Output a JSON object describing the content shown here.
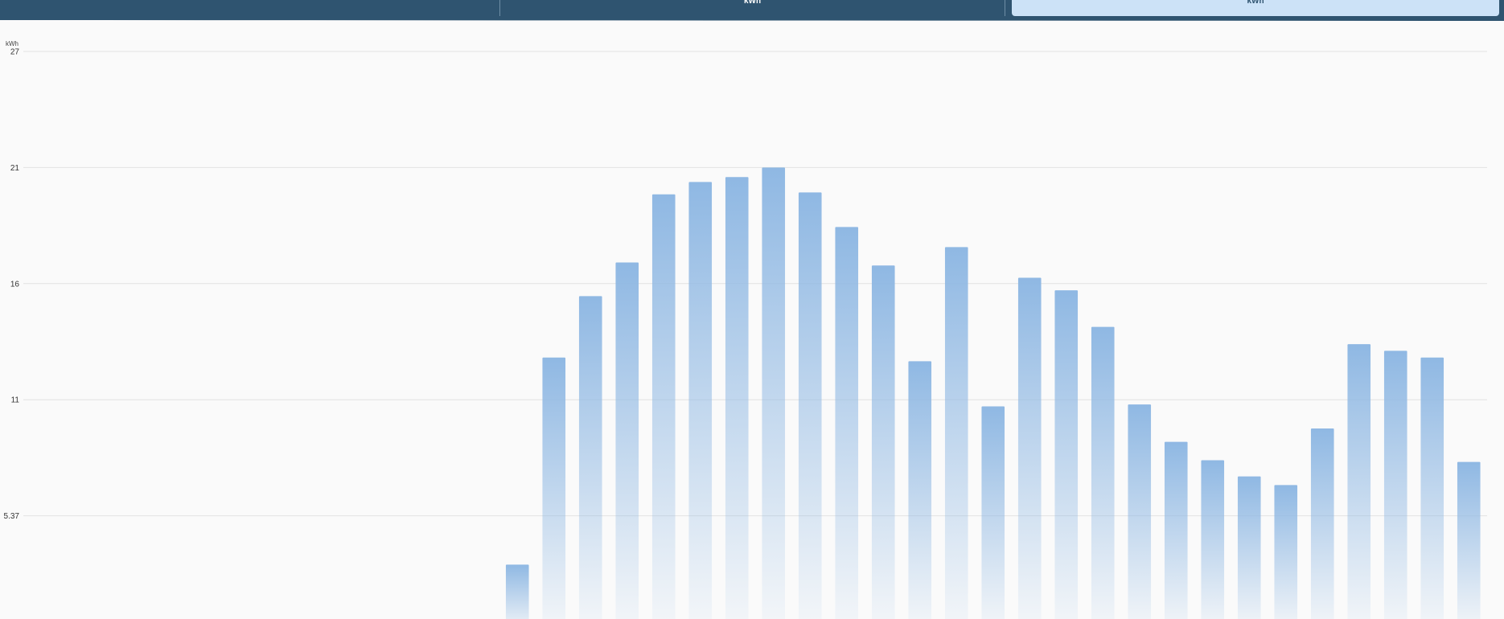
{
  "header": {
    "tabs": [
      {
        "label": "",
        "selected": false
      },
      {
        "label": "kWh",
        "selected": false
      },
      {
        "label": "kWh",
        "selected": true
      }
    ],
    "colors": {
      "bar": "#2f5470",
      "selected_tab": "#cce2f7"
    }
  },
  "chart_data": {
    "type": "bar",
    "title": "",
    "ylabel": "kWh",
    "yticks": [
      "5.37",
      "11",
      "16",
      "21",
      "27"
    ],
    "ytick_values": [
      5.37,
      10.74,
      16.11,
      21.48,
      26.85
    ],
    "ylim": [
      0,
      26.85
    ],
    "grid": true,
    "bar_color": "#8fb8e3",
    "slots": 40,
    "values": [
      null,
      null,
      null,
      null,
      null,
      null,
      null,
      null,
      null,
      null,
      null,
      null,
      null,
      3.11,
      12.69,
      15.53,
      17.09,
      20.24,
      20.81,
      21.04,
      21.48,
      20.33,
      18.73,
      16.95,
      12.52,
      17.8,
      10.43,
      16.38,
      15.8,
      14.11,
      10.52,
      8.79,
      7.94,
      7.19,
      6.79,
      9.41,
      13.31,
      13.0,
      12.69,
      7.86
    ]
  }
}
